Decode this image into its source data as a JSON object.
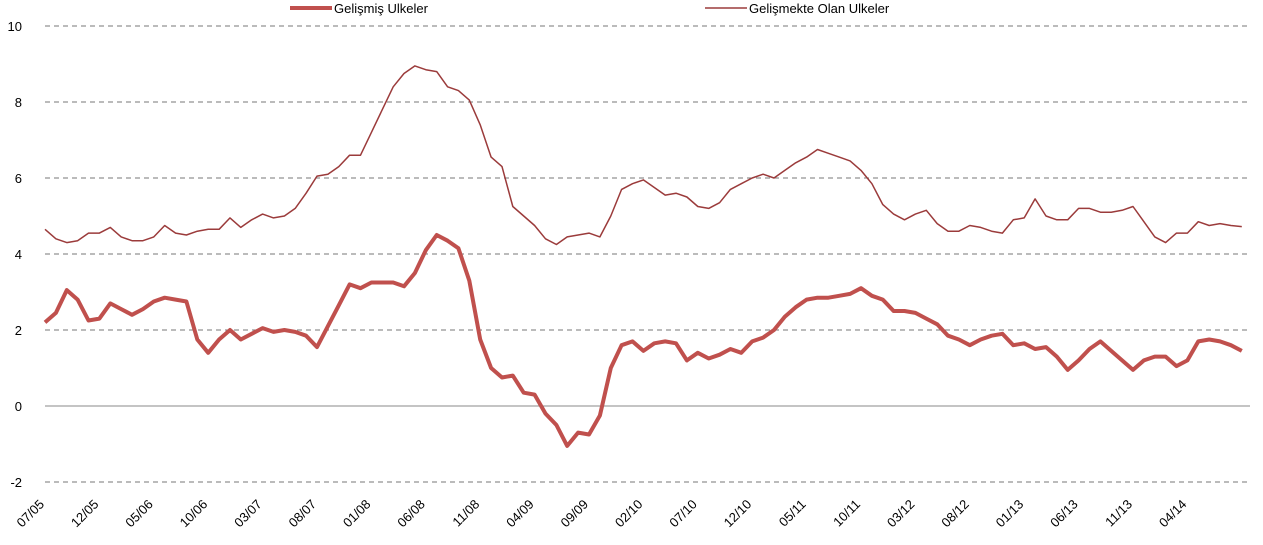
{
  "chart_data": {
    "type": "line",
    "categories": [
      "07/05",
      null,
      null,
      null,
      null,
      "12/05",
      null,
      null,
      null,
      null,
      "05/06",
      null,
      null,
      null,
      null,
      "10/06",
      null,
      null,
      null,
      null,
      "03/07",
      null,
      null,
      null,
      null,
      "08/07",
      null,
      null,
      null,
      null,
      "01/08",
      null,
      null,
      null,
      null,
      "06/08",
      null,
      null,
      null,
      null,
      "11/08",
      null,
      null,
      null,
      null,
      "04/09",
      null,
      null,
      null,
      null,
      "09/09",
      null,
      null,
      null,
      null,
      "02/10",
      null,
      null,
      null,
      null,
      "07/10",
      null,
      null,
      null,
      null,
      "12/10",
      null,
      null,
      null,
      null,
      "05/11",
      null,
      null,
      null,
      null,
      "10/11",
      null,
      null,
      null,
      null,
      "03/12",
      null,
      null,
      null,
      null,
      "08/12",
      null,
      null,
      null,
      null,
      "01/13",
      null,
      null,
      null,
      null,
      "06/13",
      null,
      null,
      null,
      null,
      "11/13",
      null,
      null,
      null,
      null,
      "04/14",
      null,
      null,
      null,
      null,
      null
    ],
    "series": [
      {
        "name": "Gelişmiş Ulkeler",
        "color": "#c0504d",
        "width": 4,
        "values": [
          2.2,
          2.45,
          3.05,
          2.8,
          2.25,
          2.3,
          2.7,
          2.55,
          2.4,
          2.55,
          2.75,
          2.85,
          2.8,
          2.75,
          1.75,
          1.4,
          1.75,
          2.0,
          1.75,
          1.9,
          2.05,
          1.95,
          2.0,
          1.95,
          1.85,
          1.55,
          2.1,
          2.65,
          3.2,
          3.1,
          3.25,
          3.25,
          3.25,
          3.15,
          3.5,
          4.1,
          4.5,
          4.35,
          4.15,
          3.3,
          1.75,
          1.0,
          0.75,
          0.8,
          0.35,
          0.3,
          -0.2,
          -0.5,
          -1.05,
          -0.7,
          -0.75,
          -0.25,
          1.0,
          1.6,
          1.7,
          1.45,
          1.65,
          1.7,
          1.65,
          1.2,
          1.4,
          1.25,
          1.35,
          1.5,
          1.4,
          1.7,
          1.8,
          2.0,
          2.35,
          2.6,
          2.8,
          2.85,
          2.85,
          2.9,
          2.95,
          3.1,
          2.9,
          2.8,
          2.5,
          2.5,
          2.45,
          2.3,
          2.15,
          1.85,
          1.75,
          1.6,
          1.75,
          1.85,
          1.9,
          1.6,
          1.65,
          1.5,
          1.55,
          1.3,
          0.95,
          1.2,
          1.5,
          1.7,
          1.45,
          1.2,
          0.95,
          1.2,
          1.3,
          1.3,
          1.05,
          1.2,
          1.7,
          1.75,
          1.7,
          1.6,
          1.45
        ]
      },
      {
        "name": "Gelişmekte Olan Ulkeler",
        "color": "#9b3b3b",
        "width": 1.5,
        "values": [
          4.65,
          4.4,
          4.3,
          4.35,
          4.55,
          4.55,
          4.7,
          4.45,
          4.35,
          4.35,
          4.45,
          4.75,
          4.55,
          4.5,
          4.6,
          4.65,
          4.65,
          4.95,
          4.7,
          4.9,
          5.05,
          4.95,
          5.0,
          5.2,
          5.6,
          6.05,
          6.1,
          6.3,
          6.6,
          6.6,
          7.2,
          7.8,
          8.4,
          8.75,
          8.95,
          8.85,
          8.8,
          8.4,
          8.3,
          8.05,
          7.4,
          6.55,
          6.3,
          5.25,
          5.0,
          4.75,
          4.4,
          4.25,
          4.45,
          4.5,
          4.55,
          4.45,
          5.0,
          5.7,
          5.85,
          5.95,
          5.75,
          5.55,
          5.6,
          5.5,
          5.25,
          5.2,
          5.35,
          5.7,
          5.85,
          6.0,
          6.1,
          6.0,
          6.2,
          6.4,
          6.55,
          6.75,
          6.65,
          6.55,
          6.45,
          6.2,
          5.85,
          5.3,
          5.05,
          4.9,
          5.05,
          5.15,
          4.8,
          4.6,
          4.6,
          4.75,
          4.7,
          4.6,
          4.55,
          4.9,
          4.95,
          5.45,
          5.0,
          4.9,
          4.9,
          5.2,
          5.2,
          5.1,
          5.1,
          5.15,
          5.25,
          4.85,
          4.45,
          4.3,
          4.55,
          4.55,
          4.85,
          4.75,
          4.8,
          4.75,
          4.72
        ]
      }
    ],
    "ylim": [
      -2,
      10
    ],
    "yticks": [
      -2,
      0,
      2,
      4,
      6,
      8,
      10
    ],
    "grid": true,
    "legend": "top"
  }
}
